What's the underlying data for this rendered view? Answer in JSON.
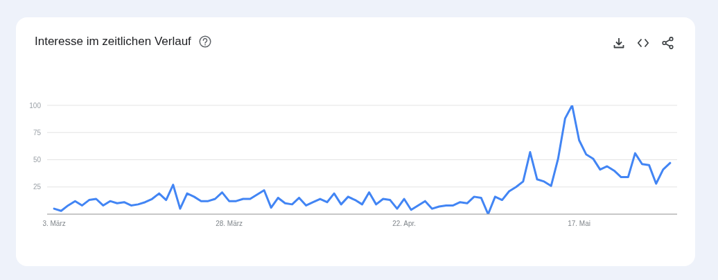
{
  "chart_data": {
    "type": "line",
    "title": "Interesse im zeitlichen Verlauf",
    "x": [
      "--03-03",
      "--03-04",
      "--03-05",
      "--03-06",
      "--03-07",
      "--03-08",
      "--03-09",
      "--03-10",
      "--03-11",
      "--03-12",
      "--03-13",
      "--03-14",
      "--03-15",
      "--03-16",
      "--03-17",
      "--03-18",
      "--03-19",
      "--03-20",
      "--03-21",
      "--03-22",
      "--03-23",
      "--03-24",
      "--03-25",
      "--03-26",
      "--03-27",
      "--03-28",
      "--03-29",
      "--03-30",
      "--03-31",
      "--04-01",
      "--04-02",
      "--04-03",
      "--04-04",
      "--04-05",
      "--04-06",
      "--04-07",
      "--04-08",
      "--04-09",
      "--04-10",
      "--04-11",
      "--04-12",
      "--04-13",
      "--04-14",
      "--04-15",
      "--04-16",
      "--04-17",
      "--04-18",
      "--04-19",
      "--04-20",
      "--04-21",
      "--04-22",
      "--04-23",
      "--04-24",
      "--04-25",
      "--04-26",
      "--04-27",
      "--04-28",
      "--04-29",
      "--04-30",
      "--05-01",
      "--05-02",
      "--05-03",
      "--05-04",
      "--05-05",
      "--05-06",
      "--05-07",
      "--05-08",
      "--05-09",
      "--05-10",
      "--05-11",
      "--05-12",
      "--05-13",
      "--05-14",
      "--05-15",
      "--05-16",
      "--05-17",
      "--05-18",
      "--05-19",
      "--05-20",
      "--05-21",
      "--05-22",
      "--05-23",
      "--05-24",
      "--05-25",
      "--05-26",
      "--05-27",
      "--05-28",
      "--05-29",
      "--05-30"
    ],
    "series": [
      {
        "color": "#4285f4",
        "values": [
          5,
          3,
          8,
          12,
          8,
          13,
          14,
          8,
          12,
          10,
          11,
          8,
          9,
          11,
          14,
          19,
          13,
          27,
          5,
          19,
          16,
          12,
          12,
          14,
          20,
          12,
          12,
          14,
          14,
          18,
          22,
          6,
          15,
          10,
          9,
          15,
          8,
          11,
          14,
          11,
          19,
          9,
          16,
          13,
          9,
          20,
          9,
          14,
          13,
          5,
          14,
          4,
          8,
          12,
          5,
          7,
          8,
          8,
          11,
          10,
          16,
          15,
          0,
          16,
          13,
          21,
          25,
          30,
          57,
          32,
          30,
          26,
          51,
          88,
          100,
          68,
          55,
          51,
          41,
          44,
          40,
          34,
          34,
          56,
          46,
          45,
          28,
          41,
          47
        ]
      }
    ],
    "xlim": [
      "--03-02",
      "--05-31"
    ],
    "xticks": [
      {
        "value": "--03-03",
        "label": "3. März"
      },
      {
        "value": "--03-28",
        "label": "28. März"
      },
      {
        "value": "--04-22",
        "label": "22. Apr."
      },
      {
        "value": "--05-17",
        "label": "17. Mai"
      }
    ],
    "ylim": [
      0,
      100
    ],
    "yticks": [
      25,
      50,
      75,
      100
    ],
    "grid": "y",
    "marker": "none",
    "line_style": "solid"
  }
}
